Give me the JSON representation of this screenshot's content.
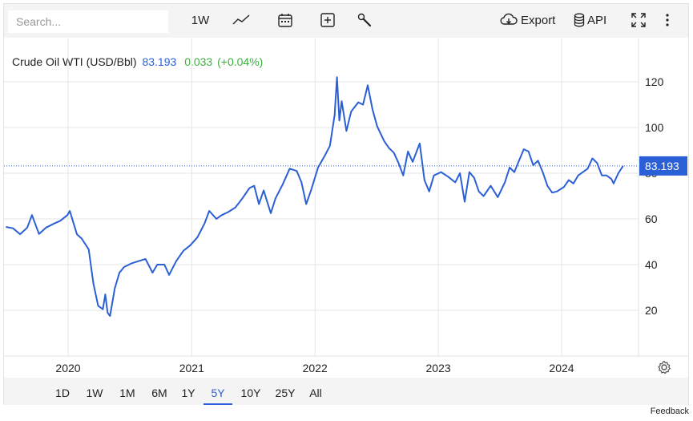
{
  "toolbar": {
    "search_placeholder": "Search...",
    "interval_label": "1W",
    "export_label": "Export",
    "api_label": "API"
  },
  "legend": {
    "name": "Crude Oil WTI (USD/Bbl)",
    "price": "83.193",
    "change": "0.033",
    "change_pct": "(+0.04%)"
  },
  "ranges": [
    "1D",
    "1W",
    "1M",
    "6M",
    "1Y",
    "5Y",
    "10Y",
    "25Y",
    "All"
  ],
  "active_range": "5Y",
  "feedback_label": "Feedback",
  "colors": {
    "line": "#2a5fd6",
    "positive": "#3ab03e",
    "accent": "#2a5fd6"
  },
  "icons": [
    "line-chart-icon",
    "calendar-icon",
    "add-indicator-icon",
    "wrench-icon",
    "cloud-download-icon",
    "database-icon",
    "fullscreen-icon",
    "more-vertical-icon",
    "gear-icon"
  ],
  "chart_data": {
    "type": "line",
    "title": "",
    "xlabel": "",
    "ylabel": "",
    "ylim": [
      0,
      135
    ],
    "yticks": [
      20,
      40,
      60,
      80,
      100,
      120
    ],
    "xticks": [
      "2020",
      "2021",
      "2022",
      "2023",
      "2024"
    ],
    "xlim": [
      "2019-07-01",
      "2024-08-15"
    ],
    "last_value": "83.193",
    "series": [
      {
        "values": [
          [
            "2019-07-01",
            56.5
          ],
          [
            "2019-07-22",
            55.9
          ],
          [
            "2019-08-12",
            53.3
          ],
          [
            "2019-09-02",
            56.2
          ],
          [
            "2019-09-16",
            61.7
          ],
          [
            "2019-10-07",
            53.4
          ],
          [
            "2019-10-28",
            56.2
          ],
          [
            "2019-11-18",
            57.8
          ],
          [
            "2019-12-09",
            59.2
          ],
          [
            "2019-12-30",
            61.7
          ],
          [
            "2020-01-06",
            63.5
          ],
          [
            "2020-01-27",
            53.3
          ],
          [
            "2020-02-10",
            51.4
          ],
          [
            "2020-03-02",
            46.7
          ],
          [
            "2020-03-16",
            31.7
          ],
          [
            "2020-03-30",
            22.0
          ],
          [
            "2020-04-13",
            20.5
          ],
          [
            "2020-04-20",
            27.0
          ],
          [
            "2020-04-27",
            19.0
          ],
          [
            "2020-05-04",
            17.5
          ],
          [
            "2020-05-18",
            29.5
          ],
          [
            "2020-06-01",
            36.5
          ],
          [
            "2020-06-15",
            39.0
          ],
          [
            "2020-07-06",
            40.5
          ],
          [
            "2020-07-27",
            41.5
          ],
          [
            "2020-08-17",
            42.5
          ],
          [
            "2020-09-07",
            36.5
          ],
          [
            "2020-09-21",
            40.0
          ],
          [
            "2020-10-12",
            40.0
          ],
          [
            "2020-10-26",
            35.5
          ],
          [
            "2020-11-16",
            41.5
          ],
          [
            "2020-12-07",
            46.0
          ],
          [
            "2020-12-28",
            48.5
          ],
          [
            "2021-01-18",
            52.0
          ],
          [
            "2021-02-08",
            58.0
          ],
          [
            "2021-02-22",
            63.5
          ],
          [
            "2021-03-15",
            60.0
          ],
          [
            "2021-03-29",
            61.5
          ],
          [
            "2021-04-19",
            63.0
          ],
          [
            "2021-05-10",
            65.0
          ],
          [
            "2021-05-31",
            69.0
          ],
          [
            "2021-06-21",
            73.5
          ],
          [
            "2021-07-05",
            74.5
          ],
          [
            "2021-07-19",
            66.5
          ],
          [
            "2021-08-02",
            72.5
          ],
          [
            "2021-08-23",
            62.5
          ],
          [
            "2021-09-06",
            69.0
          ],
          [
            "2021-09-27",
            75.0
          ],
          [
            "2021-10-18",
            82.0
          ],
          [
            "2021-11-08",
            81.0
          ],
          [
            "2021-11-22",
            76.0
          ],
          [
            "2021-12-06",
            66.5
          ],
          [
            "2021-12-20",
            72.5
          ],
          [
            "2022-01-10",
            82.5
          ],
          [
            "2022-01-31",
            88.0
          ],
          [
            "2022-02-14",
            92.0
          ],
          [
            "2022-02-28",
            105.5
          ],
          [
            "2022-03-07",
            122.0
          ],
          [
            "2022-03-14",
            103.0
          ],
          [
            "2022-03-21",
            111.5
          ],
          [
            "2022-04-04",
            98.5
          ],
          [
            "2022-04-18",
            107.0
          ],
          [
            "2022-05-09",
            111.0
          ],
          [
            "2022-05-23",
            110.0
          ],
          [
            "2022-06-06",
            118.5
          ],
          [
            "2022-06-20",
            108.0
          ],
          [
            "2022-07-04",
            100.5
          ],
          [
            "2022-07-25",
            94.0
          ],
          [
            "2022-08-08",
            91.0
          ],
          [
            "2022-08-22",
            89.0
          ],
          [
            "2022-09-05",
            84.5
          ],
          [
            "2022-09-19",
            79.0
          ],
          [
            "2022-10-03",
            89.5
          ],
          [
            "2022-10-17",
            85.0
          ],
          [
            "2022-11-07",
            93.0
          ],
          [
            "2022-11-21",
            77.0
          ],
          [
            "2022-12-05",
            72.0
          ],
          [
            "2022-12-19",
            79.0
          ],
          [
            "2023-01-09",
            80.5
          ],
          [
            "2023-01-30",
            78.5
          ],
          [
            "2023-02-20",
            76.0
          ],
          [
            "2023-03-06",
            80.0
          ],
          [
            "2023-03-20",
            67.5
          ],
          [
            "2023-04-03",
            80.5
          ],
          [
            "2023-04-17",
            78.0
          ],
          [
            "2023-05-01",
            72.0
          ],
          [
            "2023-05-15",
            70.0
          ],
          [
            "2023-06-05",
            74.5
          ],
          [
            "2023-06-26",
            69.5
          ],
          [
            "2023-07-17",
            76.0
          ],
          [
            "2023-07-31",
            82.5
          ],
          [
            "2023-08-14",
            80.5
          ],
          [
            "2023-08-28",
            85.5
          ],
          [
            "2023-09-11",
            90.5
          ],
          [
            "2023-09-25",
            89.5
          ],
          [
            "2023-10-09",
            83.5
          ],
          [
            "2023-10-23",
            85.5
          ],
          [
            "2023-11-06",
            80.5
          ],
          [
            "2023-11-20",
            74.5
          ],
          [
            "2023-12-04",
            71.5
          ],
          [
            "2023-12-18",
            72.0
          ],
          [
            "2024-01-08",
            74.0
          ],
          [
            "2024-01-22",
            77.0
          ],
          [
            "2024-02-05",
            75.5
          ],
          [
            "2024-02-19",
            79.0
          ],
          [
            "2024-03-04",
            80.5
          ],
          [
            "2024-03-18",
            82.0
          ],
          [
            "2024-04-01",
            86.5
          ],
          [
            "2024-04-15",
            84.5
          ],
          [
            "2024-04-29",
            79.0
          ],
          [
            "2024-05-13",
            79.0
          ],
          [
            "2024-05-27",
            77.5
          ],
          [
            "2024-06-03",
            75.5
          ],
          [
            "2024-06-17",
            80.0
          ],
          [
            "2024-07-01",
            83.193
          ]
        ]
      }
    ]
  }
}
